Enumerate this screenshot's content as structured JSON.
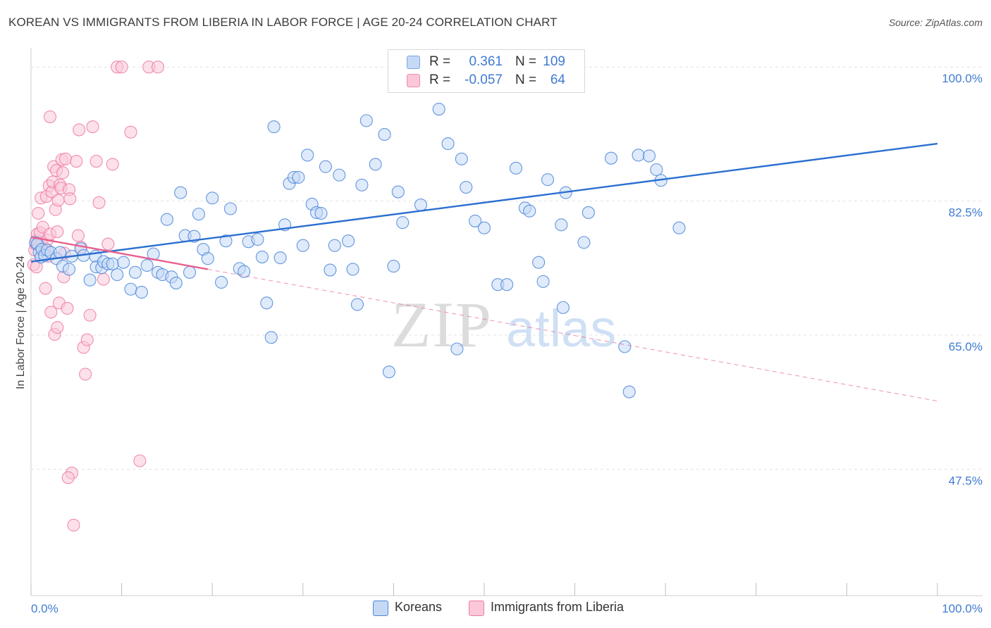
{
  "header": {
    "title": "KOREAN VS IMMIGRANTS FROM LIBERIA IN LABOR FORCE | AGE 20-24 CORRELATION CHART",
    "source": "Source: ZipAtlas.com"
  },
  "watermark": {
    "part1": "ZIP",
    "part2": "atlas"
  },
  "legend_top": {
    "rows": [
      {
        "r_label": "R =",
        "r_value": "0.361",
        "n_label": "N =",
        "n_value": "109",
        "color": "#7aa8e8",
        "fill": "#c5d9f5"
      },
      {
        "r_label": "R =",
        "r_value": "-0.057",
        "n_label": "N =",
        "n_value": "64",
        "color": "#f08cb0",
        "fill": "#fac8d9"
      }
    ]
  },
  "chart_data": {
    "type": "scatter",
    "title": "KOREAN VS IMMIGRANTS FROM LIBERIA IN LABOR FORCE | AGE 20-24 CORRELATION CHART",
    "ylabel": "In Labor Force | Age 20-24",
    "xlabel": "",
    "xlim": [
      0,
      100
    ],
    "ylim": [
      31,
      102.5
    ],
    "x_tick_labels": [
      "0.0%",
      "100.0%"
    ],
    "y_ticks": [
      {
        "value": 100.0,
        "label": "100.0%"
      },
      {
        "value": 82.5,
        "label": "82.5%"
      },
      {
        "value": 65.0,
        "label": "65.0%"
      },
      {
        "value": 47.5,
        "label": "47.5%"
      }
    ],
    "grid": true,
    "legend": [
      "Koreans",
      "Immigrants from Liberia"
    ],
    "series": [
      {
        "name": "Koreans",
        "color": "#4a86d8",
        "fill": "#c5d9f5",
        "r": 0.361,
        "n": 109,
        "trend": {
          "x": [
            0,
            100
          ],
          "y": [
            74.6,
            90.0
          ],
          "style": "solid",
          "color": "#2a6fd0"
        },
        "points": [
          [
            0.5,
            77.1
          ],
          [
            0.7,
            76.9
          ],
          [
            0.9,
            75.8
          ],
          [
            1.1,
            75.2
          ],
          [
            1.2,
            76.2
          ],
          [
            1.5,
            75.4
          ],
          [
            1.8,
            76.1
          ],
          [
            2.2,
            75.8
          ],
          [
            2.8,
            75.0
          ],
          [
            3.2,
            75.8
          ],
          [
            3.5,
            74.0
          ],
          [
            4.2,
            73.6
          ],
          [
            4.5,
            75.3
          ],
          [
            5.5,
            76.3
          ],
          [
            5.8,
            75.4
          ],
          [
            6.5,
            72.2
          ],
          [
            7.1,
            75.3
          ],
          [
            7.2,
            73.9
          ],
          [
            7.8,
            73.8
          ],
          [
            8.0,
            74.6
          ],
          [
            8.5,
            74.3
          ],
          [
            9.0,
            74.3
          ],
          [
            9.5,
            72.9
          ],
          [
            10.2,
            74.5
          ],
          [
            11.0,
            71.0
          ],
          [
            11.5,
            73.2
          ],
          [
            12.2,
            70.6
          ],
          [
            12.8,
            74.1
          ],
          [
            13.5,
            75.6
          ],
          [
            14.0,
            73.2
          ],
          [
            14.5,
            72.9
          ],
          [
            15.0,
            80.1
          ],
          [
            15.5,
            72.6
          ],
          [
            16.0,
            71.8
          ],
          [
            16.5,
            83.6
          ],
          [
            17.0,
            78.0
          ],
          [
            17.5,
            73.2
          ],
          [
            18.0,
            77.9
          ],
          [
            18.5,
            80.8
          ],
          [
            19.0,
            76.2
          ],
          [
            19.5,
            75.0
          ],
          [
            20.0,
            82.9
          ],
          [
            21.0,
            71.9
          ],
          [
            21.5,
            77.3
          ],
          [
            22.0,
            81.5
          ],
          [
            23.0,
            73.7
          ],
          [
            23.5,
            73.3
          ],
          [
            24.0,
            77.2
          ],
          [
            25.0,
            77.5
          ],
          [
            25.5,
            75.2
          ],
          [
            26.0,
            69.2
          ],
          [
            26.5,
            64.7
          ],
          [
            26.8,
            92.2
          ],
          [
            27.5,
            75.1
          ],
          [
            28.0,
            79.4
          ],
          [
            28.5,
            84.8
          ],
          [
            29.0,
            85.6
          ],
          [
            29.5,
            85.6
          ],
          [
            30.0,
            76.7
          ],
          [
            30.5,
            88.5
          ],
          [
            31.0,
            82.1
          ],
          [
            31.5,
            81.0
          ],
          [
            32.0,
            80.9
          ],
          [
            32.5,
            87.0
          ],
          [
            33.0,
            73.5
          ],
          [
            33.5,
            76.7
          ],
          [
            34.0,
            85.9
          ],
          [
            35.0,
            77.3
          ],
          [
            35.5,
            73.6
          ],
          [
            36.0,
            69.0
          ],
          [
            36.5,
            84.6
          ],
          [
            37.0,
            93.0
          ],
          [
            38.0,
            87.3
          ],
          [
            39.0,
            91.2
          ],
          [
            39.5,
            60.2
          ],
          [
            40.0,
            74.0
          ],
          [
            40.5,
            83.7
          ],
          [
            41.0,
            79.7
          ],
          [
            42.0,
            100.0
          ],
          [
            43.0,
            82.0
          ],
          [
            44.0,
            100.0
          ],
          [
            45.0,
            94.5
          ],
          [
            46.0,
            90.0
          ],
          [
            47.0,
            63.2
          ],
          [
            47.5,
            88.0
          ],
          [
            48.0,
            84.3
          ],
          [
            49.0,
            79.9
          ],
          [
            50.0,
            79.0
          ],
          [
            51.5,
            71.6
          ],
          [
            52.5,
            71.6
          ],
          [
            53.5,
            86.8
          ],
          [
            54.5,
            81.6
          ],
          [
            55.0,
            81.2
          ],
          [
            56.0,
            74.5
          ],
          [
            56.5,
            72.0
          ],
          [
            57.0,
            85.3
          ],
          [
            58.5,
            79.4
          ],
          [
            58.7,
            68.6
          ],
          [
            59.0,
            83.6
          ],
          [
            61.0,
            77.1
          ],
          [
            61.5,
            81.0
          ],
          [
            64.0,
            88.1
          ],
          [
            65.5,
            63.5
          ],
          [
            66.0,
            57.6
          ],
          [
            67.0,
            88.5
          ],
          [
            68.2,
            88.4
          ],
          [
            69.0,
            86.6
          ],
          [
            69.5,
            85.2
          ],
          [
            71.5,
            79.0
          ]
        ]
      },
      {
        "name": "Immigrants from Liberia",
        "color": "#ee7aa2",
        "fill": "#fac8d9",
        "r": -0.057,
        "n": 64,
        "trend": {
          "x": [
            0,
            19.5
          ],
          "y": [
            77.8,
            73.6
          ],
          "style": "solid",
          "color": "#e7608f",
          "extension": {
            "x": [
              19.5,
              100
            ],
            "y": [
              73.6,
              56.4
            ],
            "style": "dashed"
          }
        },
        "points": [
          [
            0.3,
            74.2
          ],
          [
            0.4,
            76.1
          ],
          [
            0.5,
            76.9
          ],
          [
            0.6,
            77.4
          ],
          [
            0.7,
            78.2
          ],
          [
            0.8,
            80.9
          ],
          [
            0.9,
            76.7
          ],
          [
            1.0,
            78.4
          ],
          [
            1.1,
            82.9
          ],
          [
            1.2,
            77.0
          ],
          [
            1.3,
            79.1
          ],
          [
            1.5,
            76.3
          ],
          [
            1.6,
            71.1
          ],
          [
            1.7,
            83.1
          ],
          [
            1.8,
            77.4
          ],
          [
            2.0,
            84.5
          ],
          [
            2.1,
            78.2
          ],
          [
            2.2,
            68.0
          ],
          [
            2.3,
            83.7
          ],
          [
            2.4,
            85.0
          ],
          [
            2.5,
            87.0
          ],
          [
            2.6,
            65.1
          ],
          [
            2.7,
            81.4
          ],
          [
            2.8,
            86.5
          ],
          [
            2.9,
            66.0
          ],
          [
            3.0,
            82.6
          ],
          [
            3.1,
            69.2
          ],
          [
            3.2,
            84.6
          ],
          [
            3.3,
            84.2
          ],
          [
            3.4,
            87.9
          ],
          [
            3.5,
            86.2
          ],
          [
            3.6,
            72.6
          ],
          [
            3.8,
            88.0
          ],
          [
            4.0,
            68.5
          ],
          [
            4.2,
            84.0
          ],
          [
            4.3,
            82.8
          ],
          [
            4.5,
            47.0
          ],
          [
            4.7,
            40.2
          ],
          [
            5.0,
            87.7
          ],
          [
            5.2,
            78.0
          ],
          [
            5.5,
            76.5
          ],
          [
            5.8,
            63.4
          ],
          [
            6.0,
            59.9
          ],
          [
            6.2,
            64.4
          ],
          [
            6.5,
            67.6
          ],
          [
            6.8,
            92.2
          ],
          [
            7.2,
            87.7
          ],
          [
            7.5,
            82.3
          ],
          [
            8.0,
            72.3
          ],
          [
            8.5,
            76.9
          ],
          [
            9.0,
            87.3
          ],
          [
            9.5,
            100.0
          ],
          [
            10.0,
            100.0
          ],
          [
            11.0,
            91.5
          ],
          [
            12.0,
            48.6
          ],
          [
            13.0,
            100.0
          ],
          [
            14.0,
            100.0
          ],
          [
            2.1,
            93.5
          ],
          [
            5.3,
            91.8
          ],
          [
            1.9,
            75.3
          ],
          [
            3.7,
            75.7
          ],
          [
            0.6,
            73.9
          ],
          [
            4.1,
            46.4
          ],
          [
            2.9,
            78.5
          ]
        ]
      }
    ]
  }
}
